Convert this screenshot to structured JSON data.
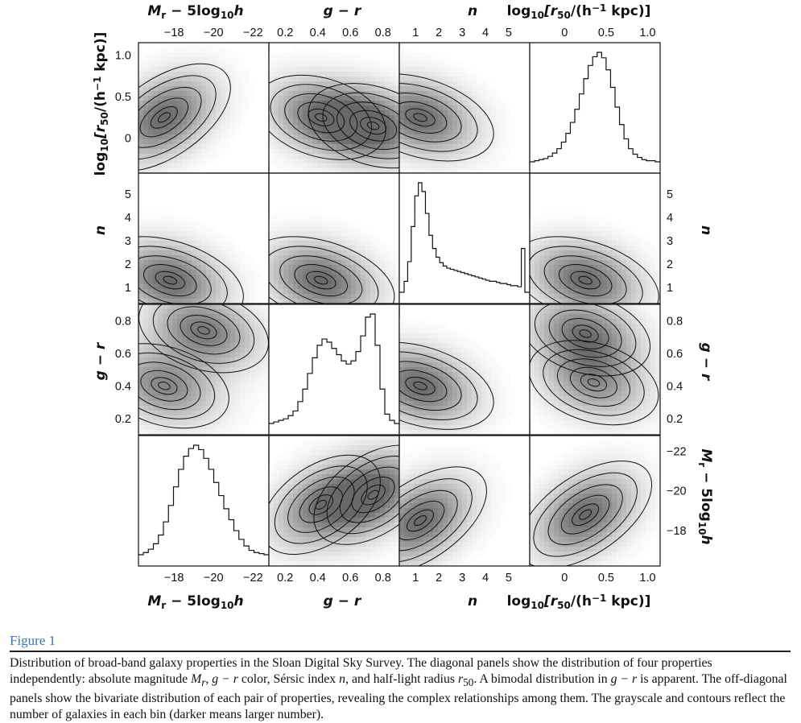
{
  "chart_data": {
    "type": "corner-plot",
    "description_title": "",
    "variables": [
      {
        "key": "Mr",
        "label_parts": [
          "M",
          "r",
          " − 5log",
          "10",
          "h"
        ],
        "axis_ticks": [
          -18,
          -20,
          -22
        ],
        "range": [
          -16.2,
          -22.8
        ]
      },
      {
        "key": "gr",
        "label_parts": [
          "g − r"
        ],
        "axis_ticks": [
          0.2,
          0.4,
          0.6,
          0.8
        ],
        "range": [
          0.1,
          0.9
        ]
      },
      {
        "key": "n",
        "label_parts": [
          "n"
        ],
        "axis_ticks": [
          1,
          2,
          3,
          4,
          5
        ],
        "range": [
          0.3,
          5.9
        ]
      },
      {
        "key": "r50",
        "label_parts": [
          "log",
          "10",
          "[r",
          "50",
          "/(h",
          "−1",
          " kpc)]"
        ],
        "axis_ticks": [
          0,
          0.5,
          1.0
        ],
        "range": [
          -0.42,
          1.15
        ]
      }
    ],
    "tick_labels": {
      "Mr": [
        "−18",
        "−20",
        "−22"
      ],
      "gr": [
        "0.2",
        "0.4",
        "0.6",
        "0.8"
      ],
      "n": [
        "1",
        "2",
        "3",
        "4",
        "5"
      ],
      "r50": [
        "0",
        "0.5",
        "1.0"
      ],
      "r50_left": [
        "1.0",
        "0.5",
        "0"
      ],
      "n_side": [
        "5",
        "4",
        "3",
        "2",
        "1"
      ],
      "gr_side": [
        "0.8",
        "0.6",
        "0.4",
        "0.2"
      ],
      "Mr_right": [
        "−22",
        "−20",
        "−18"
      ]
    },
    "axis_labels": {
      "Mr": "Mr − 5log10h",
      "gr": "g − r",
      "n": "n",
      "r50": "log10[r50/(h−1 kpc)]"
    },
    "rows": [
      "r50",
      "n",
      "gr",
      "Mr"
    ],
    "cols": [
      "Mr",
      "gr",
      "n",
      "r50"
    ],
    "histograms": {
      "r50": {
        "bins": [
          -0.42,
          1.15
        ],
        "values": [
          1,
          2,
          3,
          5,
          8,
          12,
          18,
          26,
          36,
          48,
          62,
          76,
          88,
          96,
          100,
          95,
          84,
          68,
          50,
          34,
          21,
          12,
          7,
          4,
          2,
          1,
          1
        ]
      },
      "n": {
        "bins": [
          0.3,
          5.9
        ],
        "values": [
          10,
          28,
          60,
          88,
          100,
          92,
          72,
          52,
          40,
          32,
          27,
          24,
          22,
          21,
          20,
          19,
          18,
          17,
          16,
          15,
          14,
          13,
          12,
          11,
          10,
          10,
          9,
          8,
          8,
          7,
          6,
          6,
          5,
          40
        ]
      },
      "gr": {
        "bins": [
          0.1,
          0.9
        ],
        "values": [
          1,
          2,
          3,
          5,
          8,
          14,
          22,
          32,
          42,
          50,
          54,
          52,
          48,
          44,
          40,
          38,
          40,
          46,
          56,
          68,
          70,
          50,
          22,
          6,
          2
        ]
      },
      "Mr": {
        "bins": [
          -16.2,
          -22.8
        ],
        "values": [
          2,
          5,
          10,
          18,
          30,
          45,
          62,
          78,
          90,
          97,
          100,
          96,
          88,
          78,
          66,
          54,
          42,
          32,
          22,
          14,
          8,
          4,
          2,
          1
        ]
      }
    },
    "density_peaks": {
      "r50_Mr": [
        {
          "x": -17.5,
          "y": 0.25,
          "w": 1
        }
      ],
      "r50_gr": [
        {
          "x": 0.42,
          "y": 0.25,
          "w": 0.85
        },
        {
          "x": 0.74,
          "y": 0.15,
          "w": 1
        }
      ],
      "r50_n": [
        {
          "x": 1.2,
          "y": 0.25,
          "w": 1
        }
      ],
      "n_Mr": [
        {
          "x": -17.8,
          "y": 1.3,
          "w": 1
        }
      ],
      "n_gr": [
        {
          "x": 0.42,
          "y": 1.3,
          "w": 1
        }
      ],
      "n_r50": [
        {
          "x": 0.25,
          "y": 1.3,
          "w": 1
        }
      ],
      "gr_Mr": [
        {
          "x": -19.5,
          "y": 0.74,
          "w": 0.9
        },
        {
          "x": -17.5,
          "y": 0.4,
          "w": 0.8
        }
      ],
      "gr_n": [
        {
          "x": 1.2,
          "y": 0.4,
          "w": 1
        }
      ],
      "gr_r50": [
        {
          "x": 0.25,
          "y": 0.72,
          "w": 0.9
        },
        {
          "x": 0.35,
          "y": 0.42,
          "w": 0.7
        }
      ],
      "Mr_gr": [
        {
          "x": 0.42,
          "y": -19.3,
          "w": 0.8
        },
        {
          "x": 0.74,
          "y": -19.8,
          "w": 1
        }
      ],
      "Mr_n": [
        {
          "x": 1.2,
          "y": -18.5,
          "w": 1
        }
      ],
      "Mr_r50": [
        {
          "x": 0.25,
          "y": -18.8,
          "w": 1
        }
      ]
    },
    "grid": false,
    "legend": "none"
  },
  "caption": {
    "figure_label": "Figure 1",
    "text_parts": [
      "Distribution of broad-band galaxy properties in the Sloan Digital Sky Survey. The diagonal panels show the distribution of four properties independently: absolute magnitude ",
      "M",
      "r",
      ", ",
      "g − r",
      " color, Sérsic index ",
      "n",
      ", and half-light radius ",
      "r",
      "50",
      ". A bimodal distribution in ",
      "g − r",
      " is apparent. The off-diagonal panels show the bivariate distribution of each pair of properties, revealing the complex relationships among them. The grayscale and contours reflect the number of galaxies in each bin (darker means larger number)."
    ]
  }
}
